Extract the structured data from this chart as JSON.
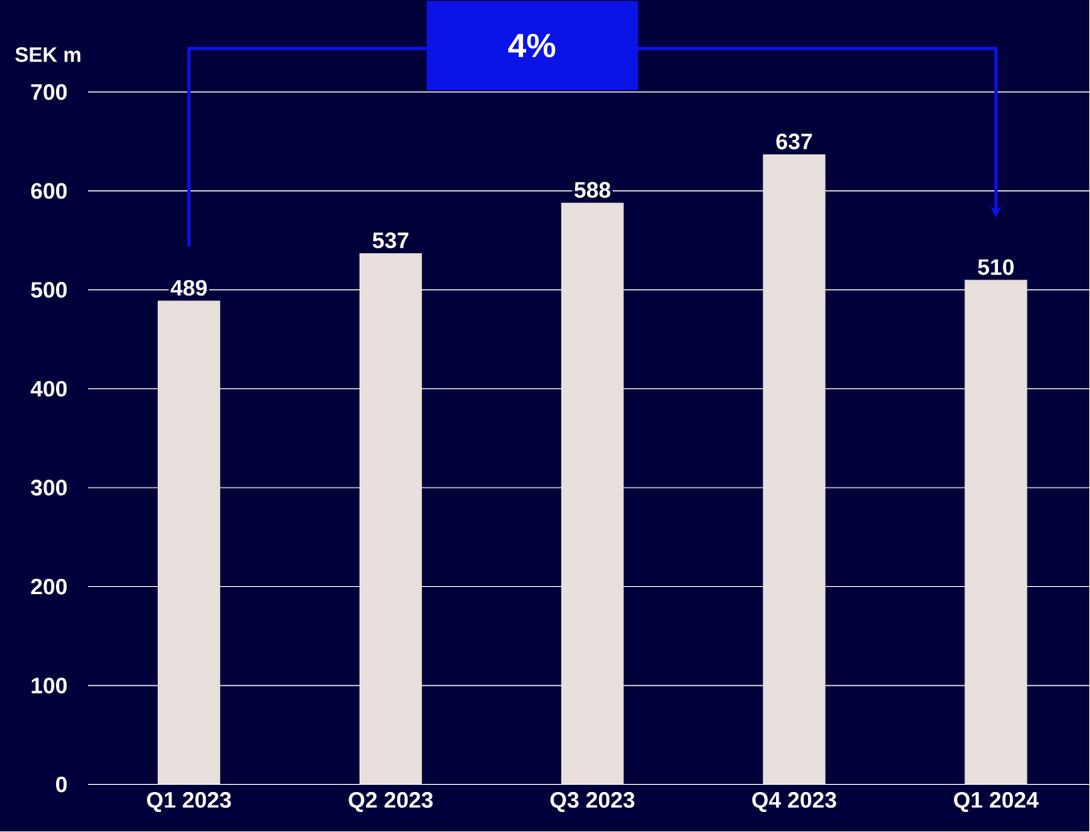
{
  "chart_data": {
    "type": "bar",
    "ylabel": "SEK m",
    "categories": [
      "Q1 2023",
      "Q2 2023",
      "Q3 2023",
      "Q4 2023",
      "Q1 2024"
    ],
    "values": [
      489,
      537,
      588,
      637,
      510
    ],
    "color": "#e8e0dc",
    "ylim": [
      0,
      700
    ],
    "yticks": [
      0,
      100,
      200,
      300,
      400,
      500,
      600,
      700
    ],
    "grid": "y",
    "data_labels": true,
    "annotations": [
      "4%"
    ]
  }
}
